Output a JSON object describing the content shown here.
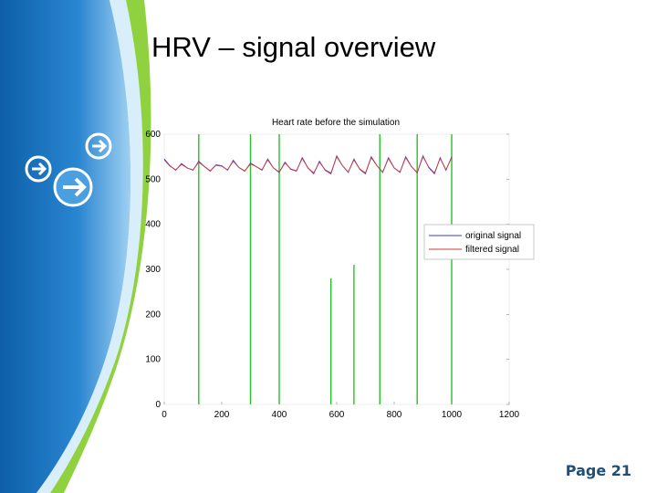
{
  "slide": {
    "title": "HRV – signal overview",
    "page_label": "Page 21"
  },
  "colors": {
    "sidebar_blue": "#1b6fb8",
    "sidebar_light": "#bfe0f7",
    "sidebar_green": "#8fd13f",
    "page_label": "#1f4e79",
    "original_signal": "#3a3ad0",
    "filtered_signal": "#d03a3a",
    "spike_color": "#27c227"
  },
  "icons": [
    "arrow-right-icon",
    "arrow-right-icon",
    "arrow-right-icon"
  ],
  "chart_data": {
    "type": "line",
    "title": "Heart rate before the simulation",
    "xlabel": "",
    "ylabel": "",
    "xlim": [
      0,
      1200
    ],
    "ylim": [
      0,
      600
    ],
    "x_ticks": [
      0,
      200,
      400,
      600,
      800,
      1000,
      1200
    ],
    "y_ticks": [
      0,
      100,
      200,
      300,
      400,
      500,
      600
    ],
    "grid": false,
    "legend_position": "right",
    "series": [
      {
        "name": "original signal",
        "color": "#3a3ad0",
        "x": [
          0,
          20,
          40,
          60,
          80,
          100,
          120,
          140,
          160,
          180,
          200,
          220,
          240,
          260,
          280,
          300,
          320,
          340,
          360,
          380,
          400,
          420,
          440,
          460,
          480,
          500,
          520,
          540,
          560,
          580,
          600,
          620,
          640,
          660,
          680,
          700,
          720,
          740,
          760,
          780,
          800,
          820,
          840,
          860,
          880,
          900,
          920,
          940,
          960,
          980,
          1000
        ],
        "values": [
          545,
          530,
          520,
          535,
          525,
          520,
          540,
          528,
          518,
          532,
          530,
          520,
          542,
          526,
          518,
          536,
          528,
          520,
          545,
          525,
          515,
          538,
          522,
          518,
          548,
          525,
          512,
          540,
          520,
          512,
          552,
          530,
          515,
          545,
          522,
          512,
          550,
          530,
          515,
          548,
          525,
          515,
          550,
          528,
          514,
          552,
          526,
          512,
          548,
          520,
          550
        ]
      },
      {
        "name": "filtered signal",
        "color": "#d03a3a",
        "x": [
          0,
          20,
          40,
          60,
          80,
          100,
          120,
          140,
          160,
          180,
          200,
          220,
          240,
          260,
          280,
          300,
          320,
          340,
          360,
          380,
          400,
          420,
          440,
          460,
          480,
          500,
          520,
          540,
          560,
          580,
          600,
          620,
          640,
          660,
          680,
          700,
          720,
          740,
          760,
          780,
          800,
          820,
          840,
          860,
          880,
          900,
          920,
          940,
          960,
          980,
          1000
        ],
        "values": [
          543,
          529,
          521,
          533,
          525,
          521,
          538,
          528,
          519,
          531,
          529,
          521,
          540,
          526,
          519,
          534,
          528,
          521,
          543,
          525,
          516,
          536,
          523,
          519,
          546,
          525,
          514,
          538,
          521,
          514,
          550,
          530,
          516,
          543,
          523,
          514,
          548,
          530,
          516,
          546,
          525,
          516,
          548,
          528,
          515,
          550,
          527,
          514,
          546,
          521,
          548
        ]
      },
      {
        "name": "",
        "type": "spikes",
        "color": "#27c227",
        "x": [
          120,
          300,
          400,
          580,
          660,
          750,
          880,
          1000
        ],
        "values": [
          600,
          600,
          600,
          280,
          310,
          600,
          600,
          600
        ]
      }
    ]
  }
}
